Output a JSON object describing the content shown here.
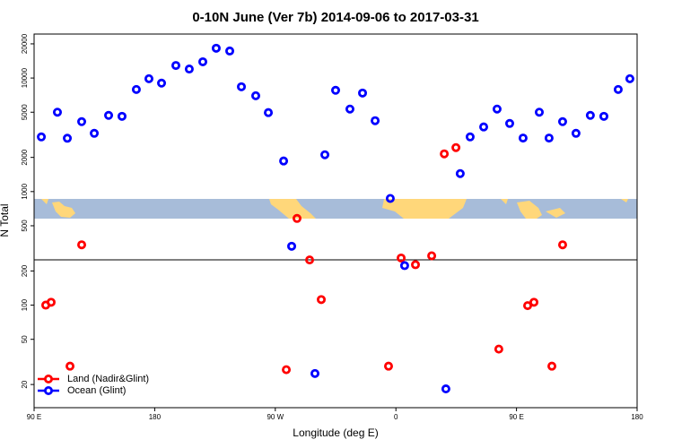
{
  "chart_data": {
    "type": "scatter",
    "title": "0-10N June (Ver 7b)   2014-09-06 to 2017-03-31",
    "x_label": "Longitude (deg E)",
    "y_label": "N Total",
    "log_y": true,
    "xlim": [
      90,
      540
    ],
    "xticks": [
      {
        "value": 90,
        "label": "90 E"
      },
      180,
      {
        "value": 270,
        "label": "90 W"
      },
      {
        "value": 360,
        "label": "0"
      },
      {
        "value": 450,
        "label": "90 E"
      },
      {
        "value": 540,
        "label": "180"
      }
    ],
    "ylim": [
      12.5,
      24400
    ],
    "yticks": [
      20,
      50,
      100,
      200,
      500,
      1000,
      2000,
      5000,
      10000,
      20000
    ],
    "legend": "bottom-left",
    "series": [
      {
        "name": "Land (Nadir&Glint)",
        "color": "#ff0000",
        "x": [
          98.7,
          102.7,
          116.8,
          125.5,
          278.2,
          286.2,
          295.6,
          304.3,
          354.5,
          363.9,
          374.6,
          386.7,
          396.1,
          404.8,
          436.8,
          458.3,
          463,
          476.4,
          484.4
        ],
        "values": [
          100,
          106,
          29,
          340,
          27,
          580,
          250,
          112,
          29,
          260,
          227,
          272,
          2150,
          2440,
          41,
          99,
          106,
          29,
          340
        ]
      },
      {
        "name": "Ocean (Glint)",
        "color": "#0000ff",
        "x": [
          95.4,
          107.4,
          114.8,
          125.5,
          134.9,
          145.6,
          155.6,
          166.3,
          175.7,
          185.1,
          195.8,
          205.8,
          215.9,
          225.9,
          236,
          244.7,
          255.4,
          264.8,
          276.2,
          282.2,
          299.6,
          307,
          315,
          325.7,
          335.1,
          344.5,
          355.8,
          366.5,
          397.3,
          408,
          415.4,
          425.5,
          435.5,
          444.9,
          454.9,
          467,
          474.3,
          484.4,
          494.4,
          505.1,
          515.2,
          525.9,
          534.6
        ],
        "values": [
          3030,
          5000,
          2950,
          4130,
          3260,
          4690,
          4600,
          7930,
          9860,
          9020,
          12900,
          12000,
          13900,
          18300,
          17300,
          8380,
          6980,
          4960,
          1860,
          330,
          25,
          2110,
          7800,
          5330,
          7380,
          4210,
          870,
          223,
          18.3,
          1440,
          3030,
          3710,
          5330,
          3980,
          2960,
          5000,
          2960,
          4130,
          3260,
          4690,
          4600,
          7930,
          9860
        ]
      }
    ]
  }
}
